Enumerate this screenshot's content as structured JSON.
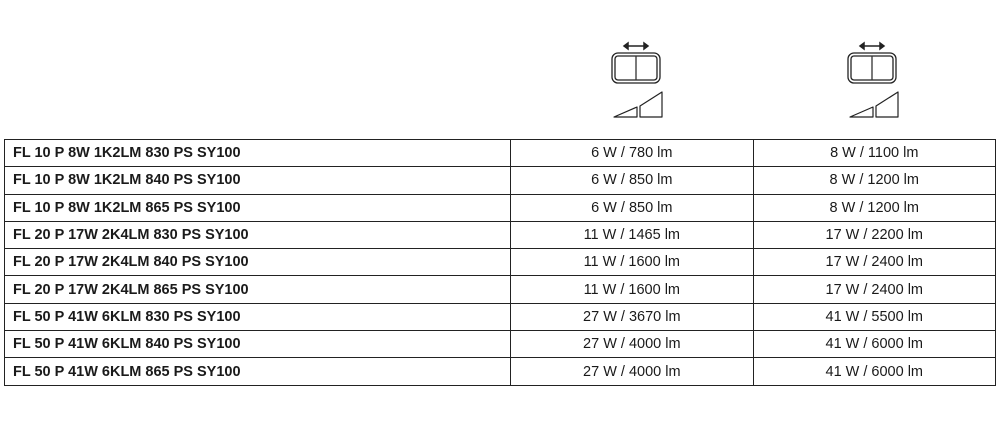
{
  "columns": [
    {
      "icon": "dimming-switch-left-icon"
    },
    {
      "icon": "dimming-switch-right-icon"
    }
  ],
  "rows": [
    {
      "name": "FL 10 P 8W 1K2LM 830 PS SY100",
      "low": "6 W / 780 lm",
      "high": "8 W / 1100 lm"
    },
    {
      "name": "FL 10 P 8W 1K2LM 840 PS SY100",
      "low": "6 W / 850 lm",
      "high": "8 W / 1200 lm"
    },
    {
      "name": "FL 10 P 8W 1K2LM 865 PS SY100",
      "low": "6 W / 850 lm",
      "high": "8 W / 1200 lm"
    },
    {
      "name": "FL 20 P 17W 2K4LM 830 PS SY100",
      "low": "11 W / 1465 lm",
      "high": "17 W / 2200 lm"
    },
    {
      "name": "FL 20 P 17W 2K4LM 840 PS SY100",
      "low": "11 W / 1600 lm",
      "high": "17 W / 2400 lm"
    },
    {
      "name": "FL 20 P 17W 2K4LM 865 PS SY100",
      "low": "11 W / 1600 lm",
      "high": "17 W / 2400 lm"
    },
    {
      "name": "FL 50 P 41W 6KLM 830 PS SY100",
      "low": "27 W / 3670 lm",
      "high": "41 W / 5500 lm"
    },
    {
      "name": "FL 50 P 41W 6KLM 840 PS SY100",
      "low": "27 W / 4000 lm",
      "high": "41 W / 6000 lm"
    },
    {
      "name": "FL 50 P 41W 6KLM 865 PS SY100",
      "low": "27 W / 4000 lm",
      "high": "41 W / 6000 lm"
    }
  ]
}
